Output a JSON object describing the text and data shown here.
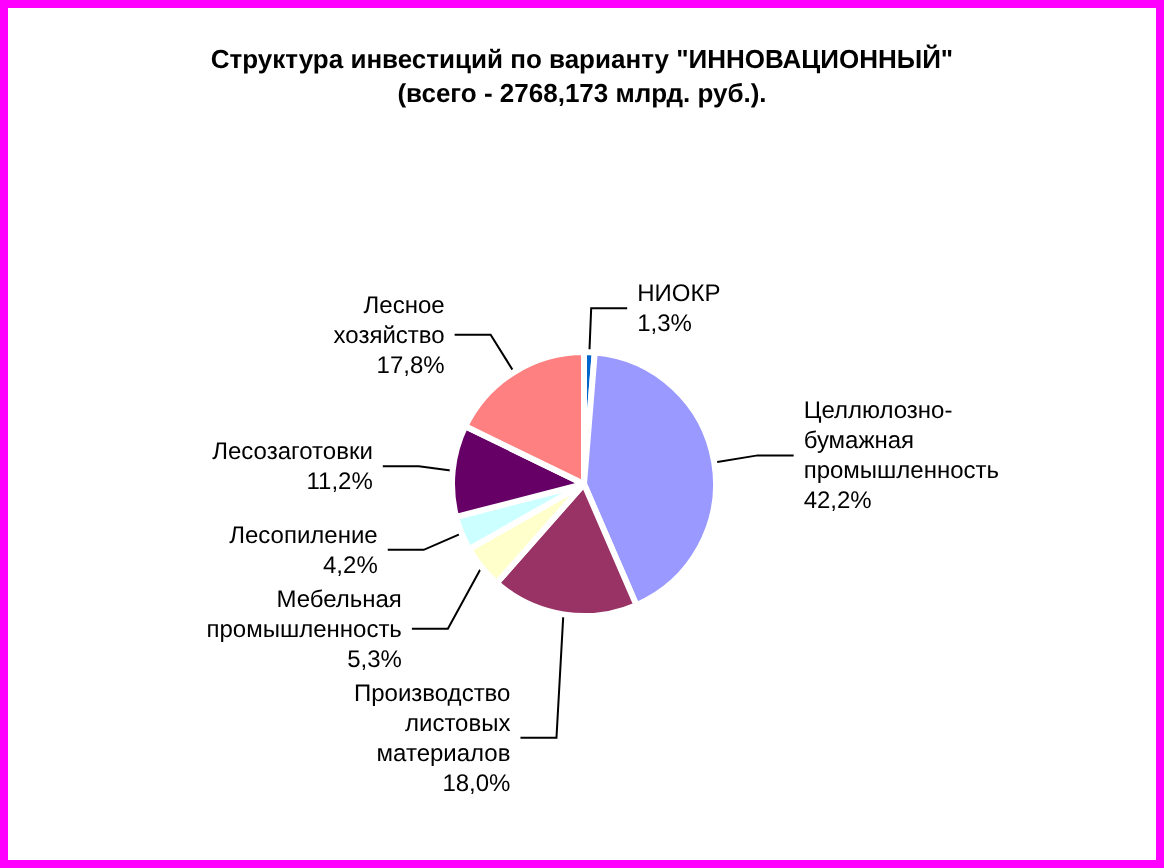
{
  "chart_data": {
    "type": "pie",
    "title": "Структура инвестиций по варианту \"ИННОВАЦИОННЫЙ\"",
    "subtitle": "(всего - 2768,173 млрд. руб.).",
    "categories": [
      "НИОКР",
      "Целлюлозно-бумажная промышленность",
      "Производство листовых материалов",
      "Мебельная промышленность",
      "Лесопиление",
      "Лесозаготовки",
      "Лесное хозяйство"
    ],
    "values": [
      1.3,
      42.2,
      18.0,
      5.3,
      4.2,
      11.2,
      17.8
    ],
    "value_labels": [
      "1,3%",
      "42,2%",
      "18,0%",
      "5,3%",
      "4,2%",
      "11,2%",
      "17,8%"
    ],
    "colors": [
      "#0066cc",
      "#9999ff",
      "#993366",
      "#ffffcc",
      "#ccffff",
      "#660066",
      "#ff8080"
    ],
    "legend": false
  }
}
